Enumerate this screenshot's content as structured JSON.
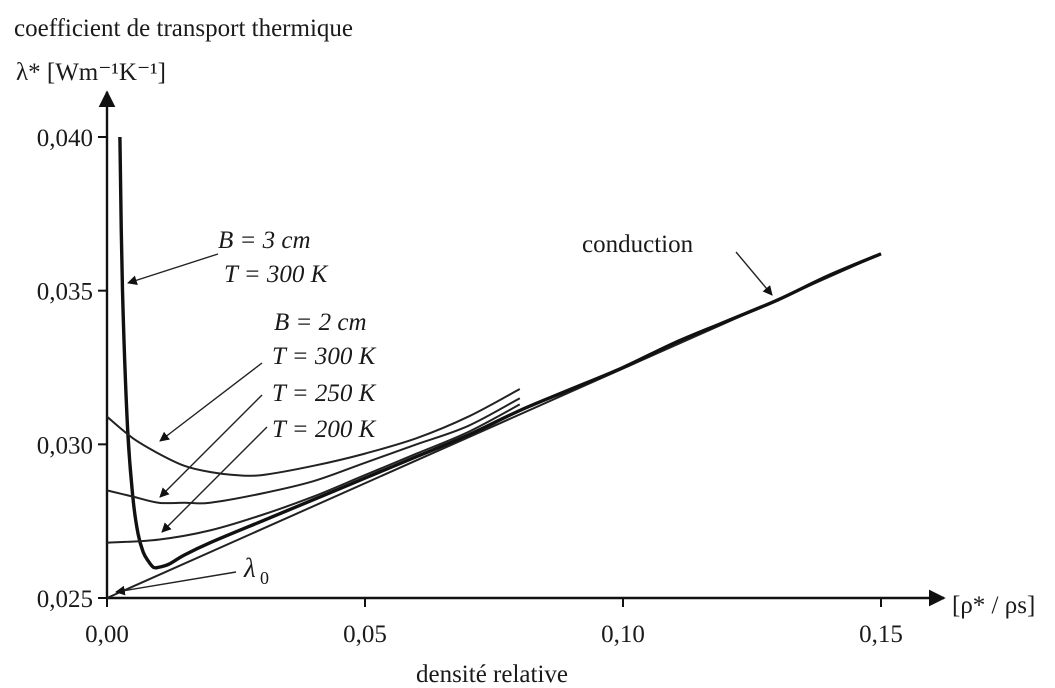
{
  "chart_data": {
    "type": "line",
    "title": "coefficient de transport thermique",
    "ylabel": "λ* [Wm⁻¹K⁻¹]",
    "xlabel": "densité relative",
    "xaxis_symbol": "[ρ* / ρs]",
    "xlim": [
      0,
      0.16
    ],
    "ylim": [
      0.025,
      0.042
    ],
    "xticks": [
      0.0,
      0.05,
      0.1,
      0.15
    ],
    "xtick_labels": [
      "0,00",
      "0,05",
      "0,10",
      "0,15"
    ],
    "yticks": [
      0.025,
      0.03,
      0.035,
      0.04
    ],
    "ytick_labels": [
      "0,025",
      "0,030",
      "0,035",
      "0,040"
    ],
    "series": [
      {
        "name": "conduction",
        "bold": false,
        "x": [
          0.0,
          0.05,
          0.1,
          0.15
        ],
        "y": [
          0.025,
          0.0287,
          0.0324,
          0.0362
        ]
      },
      {
        "name": "B = 3 cm, T = 300 K",
        "bold": true,
        "x": [
          0.0025,
          0.003,
          0.004,
          0.005,
          0.006,
          0.007,
          0.008,
          0.009,
          0.01,
          0.012,
          0.015,
          0.02,
          0.03,
          0.04,
          0.05,
          0.06,
          0.07,
          0.08,
          0.09,
          0.1,
          0.11,
          0.12,
          0.13,
          0.14,
          0.15
        ],
        "y": [
          0.04,
          0.035,
          0.0305,
          0.0283,
          0.0271,
          0.0265,
          0.0262,
          0.026,
          0.026,
          0.0261,
          0.0264,
          0.0268,
          0.0275,
          0.0282,
          0.0289,
          0.0296,
          0.0303,
          0.0311,
          0.0318,
          0.0325,
          0.0333,
          0.034,
          0.0347,
          0.0355,
          0.0362
        ]
      },
      {
        "name": "B = 2 cm, T = 300 K",
        "bold": false,
        "x": [
          0.0,
          0.005,
          0.01,
          0.015,
          0.02,
          0.025,
          0.03,
          0.04,
          0.05,
          0.06,
          0.07,
          0.08
        ],
        "y": [
          0.0309,
          0.0302,
          0.0297,
          0.0293,
          0.0291,
          0.029,
          0.029,
          0.0293,
          0.0297,
          0.0302,
          0.0309,
          0.0318
        ]
      },
      {
        "name": "B = 2 cm, T = 250 K",
        "bold": false,
        "x": [
          0.0,
          0.005,
          0.01,
          0.015,
          0.02,
          0.03,
          0.04,
          0.05,
          0.06,
          0.07,
          0.08
        ],
        "y": [
          0.0285,
          0.0283,
          0.0281,
          0.0281,
          0.0281,
          0.0284,
          0.0288,
          0.0294,
          0.03,
          0.0306,
          0.0315
        ]
      },
      {
        "name": "B = 2 cm, T = 200 K",
        "bold": false,
        "x": [
          0.0,
          0.01,
          0.02,
          0.03,
          0.04,
          0.05,
          0.06,
          0.07,
          0.08
        ],
        "y": [
          0.0268,
          0.0269,
          0.0272,
          0.0277,
          0.0283,
          0.029,
          0.0297,
          0.0304,
          0.0313
        ]
      }
    ],
    "annotations": {
      "b3": "B = 3 cm",
      "t3": "T = 300 K",
      "b2": "B = 2 cm",
      "t300": "T = 300 K",
      "t250": "T = 250 K",
      "t200": "T = 200 K",
      "conduction": "conduction",
      "lambda0": "λ",
      "lambda0_sub": "0"
    },
    "grid": false
  }
}
